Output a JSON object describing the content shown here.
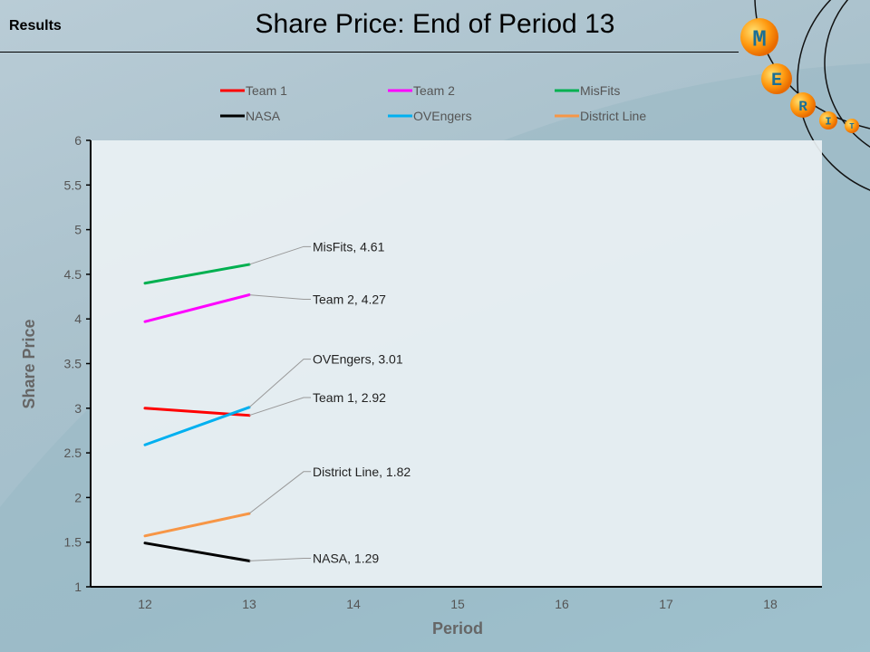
{
  "header": {
    "section": "Results",
    "title": "Share Price: End of Period 13"
  },
  "logo": {
    "letters": [
      "M",
      "E",
      "R",
      "I",
      "T"
    ]
  },
  "chart_data": {
    "type": "line",
    "title": "Share Price: End of Period 13",
    "xlabel": "Period",
    "ylabel": "Share Price",
    "x": [
      12,
      13
    ],
    "xlim": [
      11.5,
      18.5
    ],
    "ylim": [
      1,
      6
    ],
    "xticks": [
      "12",
      "13",
      "14",
      "15",
      "16",
      "17",
      "18"
    ],
    "yticks": [
      "1",
      "1.5",
      "2",
      "2.5",
      "3",
      "3.5",
      "4",
      "4.5",
      "5",
      "5.5",
      "6"
    ],
    "legend_position": "top",
    "series": [
      {
        "name": "Team 1",
        "color": "#ff0000",
        "values": [
          3.0,
          2.92
        ],
        "label": "Team 1, 2.92",
        "label_dy": 0.2
      },
      {
        "name": "Team 2",
        "color": "#ff00ff",
        "values": [
          3.97,
          4.27
        ],
        "label": "Team 2, 4.27",
        "label_dy": -0.05
      },
      {
        "name": "MisFits",
        "color": "#00b050",
        "values": [
          4.4,
          4.61
        ],
        "label": "MisFits, 4.61",
        "label_dy": 0.2
      },
      {
        "name": "NASA",
        "color": "#000000",
        "values": [
          1.49,
          1.29
        ],
        "label": "NASA, 1.29",
        "label_dy": 0.03
      },
      {
        "name": "OVEngers",
        "color": "#00b0f0",
        "values": [
          2.59,
          3.01
        ],
        "label": "OVEngers, 3.01",
        "label_dy": 0.54
      },
      {
        "name": "District Line",
        "color": "#f79646",
        "values": [
          1.57,
          1.82
        ],
        "label": "District Line, 1.82",
        "label_dy": 0.47
      }
    ]
  }
}
